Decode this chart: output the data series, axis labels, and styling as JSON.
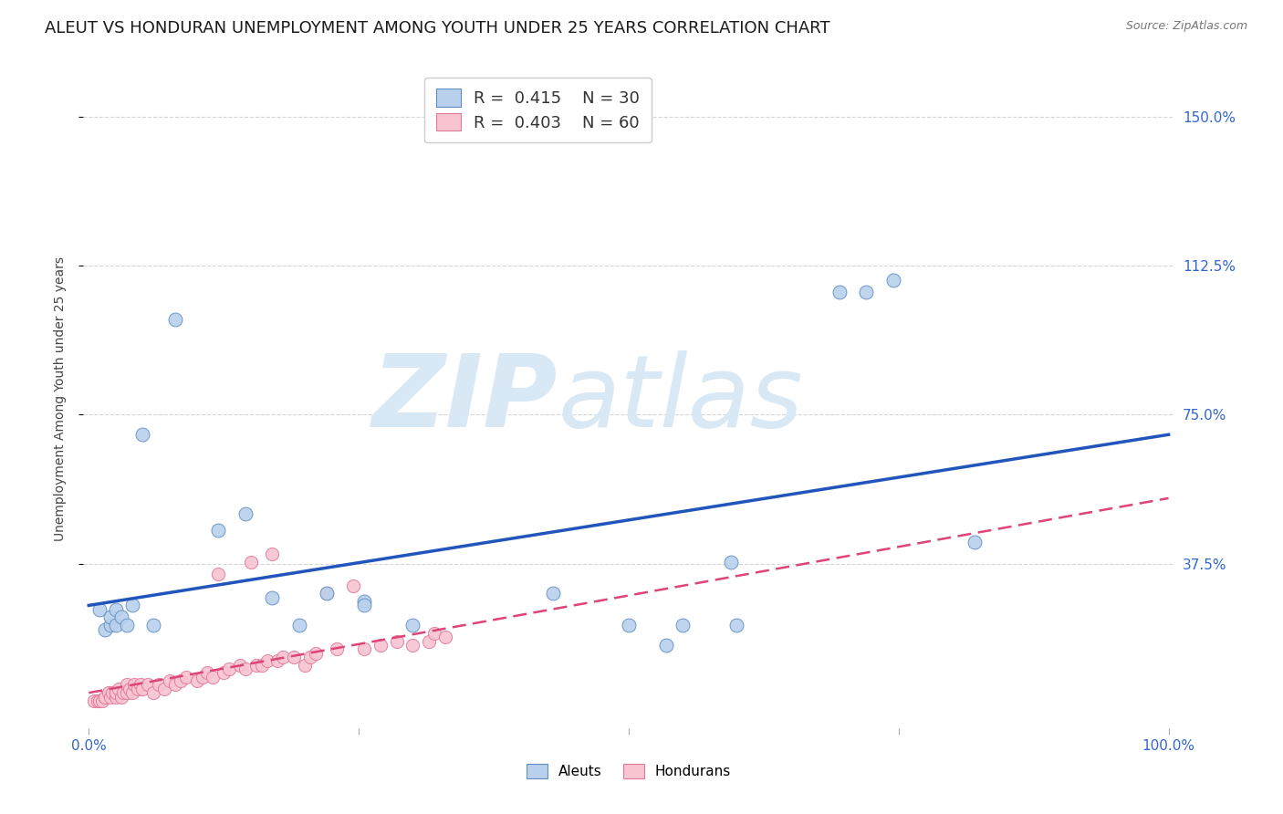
{
  "title": "ALEUT VS HONDURAN UNEMPLOYMENT AMONG YOUTH UNDER 25 YEARS CORRELATION CHART",
  "source": "Source: ZipAtlas.com",
  "ylabel": "Unemployment Among Youth under 25 years",
  "xlim": [
    -0.005,
    1.005
  ],
  "ylim": [
    -0.04,
    1.62
  ],
  "ytick_right_vals": [
    0.375,
    0.75,
    1.125,
    1.5
  ],
  "ytick_right_labels": [
    "37.5%",
    "75.0%",
    "112.5%",
    "150.0%"
  ],
  "aleuts_R": "0.415",
  "aleuts_N": "30",
  "hondurans_R": "0.403",
  "hondurans_N": "60",
  "aleuts_color": "#b8d0eb",
  "aleuts_edge_color": "#5f8dc4",
  "hondurans_color": "#f7c4d0",
  "hondurans_edge_color": "#e07898",
  "line_blue": "#2255bb",
  "line_pink": "#dd4477",
  "background_color": "#ffffff",
  "watermark_color": "#d8e8f5",
  "title_fontsize": 13,
  "axis_label_fontsize": 10,
  "tick_fontsize": 11,
  "legend_fontsize": 13,
  "aleut_line_y0": 0.27,
  "aleut_line_y1": 0.7,
  "hond_line_y0": 0.05,
  "hond_line_y1": 0.54,
  "aleuts_x": [
    0.01,
    0.015,
    0.02,
    0.02,
    0.025,
    0.025,
    0.03,
    0.035,
    0.04,
    0.05,
    0.06,
    0.08,
    0.12,
    0.145,
    0.17,
    0.195,
    0.22,
    0.255,
    0.3,
    0.255,
    0.5,
    0.535,
    0.595,
    0.6,
    0.695,
    0.72,
    0.745,
    0.82,
    0.43,
    0.55
  ],
  "aleuts_y": [
    0.26,
    0.21,
    0.22,
    0.24,
    0.26,
    0.22,
    0.24,
    0.22,
    0.27,
    0.7,
    0.22,
    0.99,
    0.46,
    0.5,
    0.29,
    0.22,
    0.3,
    0.28,
    0.22,
    0.27,
    0.22,
    0.17,
    0.38,
    0.22,
    1.06,
    1.06,
    1.09,
    0.43,
    0.3,
    0.22
  ],
  "hondurans_x": [
    0.005,
    0.008,
    0.01,
    0.012,
    0.015,
    0.015,
    0.018,
    0.02,
    0.022,
    0.025,
    0.025,
    0.028,
    0.03,
    0.032,
    0.035,
    0.035,
    0.038,
    0.04,
    0.042,
    0.045,
    0.048,
    0.05,
    0.055,
    0.06,
    0.065,
    0.07,
    0.075,
    0.08,
    0.085,
    0.09,
    0.1,
    0.105,
    0.11,
    0.115,
    0.12,
    0.125,
    0.13,
    0.14,
    0.145,
    0.15,
    0.155,
    0.16,
    0.165,
    0.17,
    0.175,
    0.18,
    0.19,
    0.2,
    0.205,
    0.21,
    0.22,
    0.23,
    0.245,
    0.255,
    0.27,
    0.285,
    0.3,
    0.315,
    0.32,
    0.33
  ],
  "hondurans_y": [
    0.03,
    0.03,
    0.03,
    0.03,
    0.04,
    0.04,
    0.05,
    0.04,
    0.05,
    0.04,
    0.05,
    0.06,
    0.04,
    0.05,
    0.05,
    0.07,
    0.06,
    0.05,
    0.07,
    0.06,
    0.07,
    0.06,
    0.07,
    0.05,
    0.07,
    0.06,
    0.08,
    0.07,
    0.08,
    0.09,
    0.08,
    0.09,
    0.1,
    0.09,
    0.35,
    0.1,
    0.11,
    0.12,
    0.11,
    0.38,
    0.12,
    0.12,
    0.13,
    0.4,
    0.13,
    0.14,
    0.14,
    0.12,
    0.14,
    0.15,
    0.3,
    0.16,
    0.32,
    0.16,
    0.17,
    0.18,
    0.17,
    0.18,
    0.2,
    0.19
  ]
}
